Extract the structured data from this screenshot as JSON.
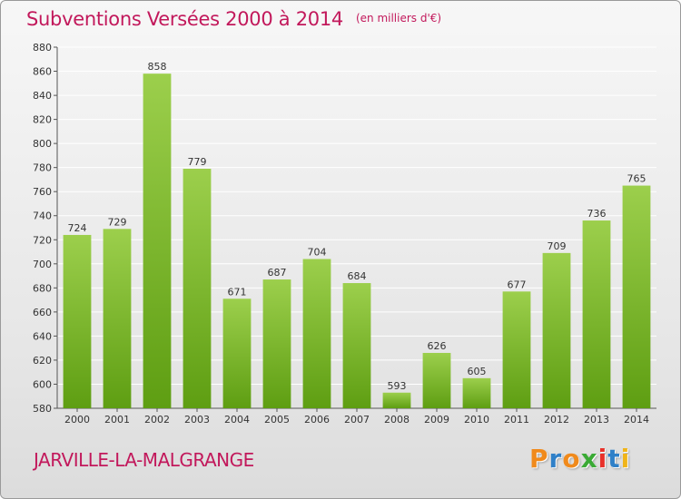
{
  "header": {
    "title": "Subventions Versées 2000 à 2014",
    "subtitle": "(en milliers d'€)"
  },
  "footer": {
    "commune": "JARVILLE-LA-MALGRANGE",
    "logo": "Proxiti"
  },
  "colors": {
    "title": "#c2185b",
    "bar_top": "#9ccf4c",
    "bar_bottom": "#5e9e12",
    "grid": "#ffffff",
    "logo_letters": [
      "#f08a1c",
      "#2f80c8",
      "#f08a1c",
      "#3aaa35",
      "#e8312a",
      "#2f80c8",
      "#f0b419"
    ]
  },
  "chart_data": {
    "type": "bar",
    "title": "Subventions Versées 2000 à 2014",
    "subtitle": "(en milliers d'€)",
    "xlabel": "",
    "ylabel": "",
    "categories": [
      "2000",
      "2001",
      "2002",
      "2003",
      "2004",
      "2005",
      "2006",
      "2007",
      "2008",
      "2009",
      "2010",
      "2011",
      "2012",
      "2013",
      "2014"
    ],
    "values": [
      724,
      729,
      858,
      779,
      671,
      687,
      704,
      684,
      593,
      626,
      605,
      677,
      709,
      736,
      765
    ],
    "ylim": [
      580,
      880
    ],
    "yticks": [
      580,
      600,
      620,
      640,
      660,
      680,
      700,
      720,
      740,
      760,
      780,
      800,
      820,
      840,
      860,
      880
    ],
    "grid": true,
    "data_labels": true,
    "legend": "none"
  }
}
